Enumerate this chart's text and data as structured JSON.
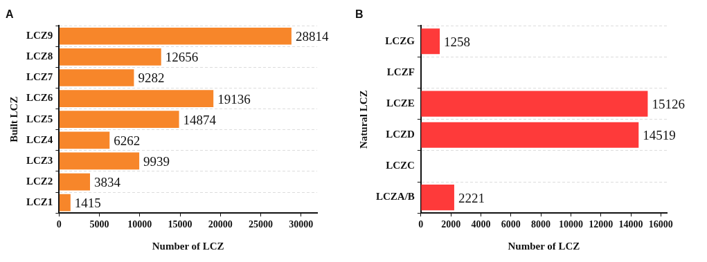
{
  "chart_data": [
    {
      "type": "bar",
      "title": "A",
      "xlabel": "Number of LCZ",
      "ylabel": "Built LCZ",
      "orientation": "horizontal",
      "categories": [
        "LCZ9",
        "LCZ8",
        "LCZ7",
        "LCZ6",
        "LCZ5",
        "LCZ4",
        "LCZ3",
        "LCZ2",
        "LCZ1"
      ],
      "values": [
        28814,
        12656,
        9282,
        19136,
        14874,
        6262,
        9939,
        3834,
        1415
      ],
      "color": "#f7862a",
      "xlim": [
        0,
        32000
      ],
      "xticks": [
        0,
        5000,
        10000,
        15000,
        20000,
        25000,
        30000
      ],
      "grid": "y",
      "data_labels": true
    },
    {
      "type": "bar",
      "title": "B",
      "xlabel": "Number of LCZ",
      "ylabel": "Natural LCZ",
      "orientation": "horizontal",
      "categories": [
        "LCZG",
        "LCZF",
        "LCZE",
        "LCZD",
        "LCZC",
        "LCZA/B"
      ],
      "values": [
        1258,
        null,
        15126,
        14519,
        null,
        2221
      ],
      "color": "#fe3a3a",
      "xlim": [
        0,
        16400
      ],
      "xticks": [
        0,
        2000,
        4000,
        6000,
        8000,
        10000,
        12000,
        14000,
        16000
      ],
      "grid": "y",
      "data_labels": true
    }
  ]
}
